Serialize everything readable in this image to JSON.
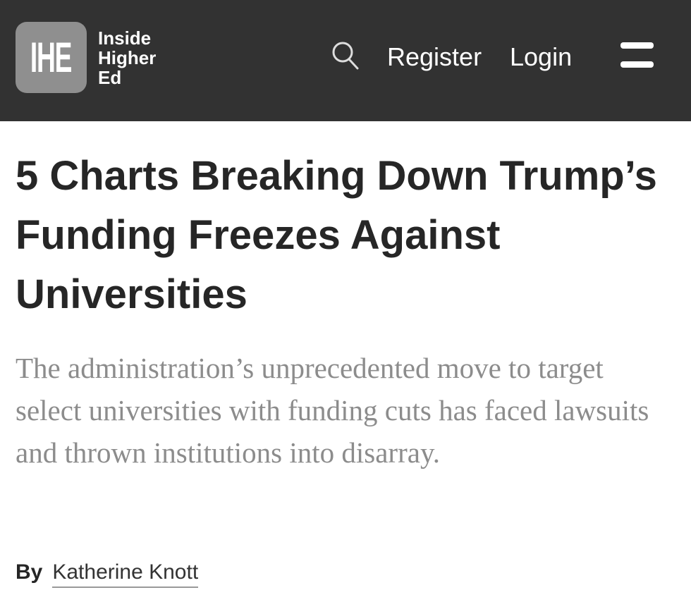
{
  "header": {
    "logo_mark": "IHE",
    "logo_text": [
      "Inside",
      "Higher",
      "Ed"
    ],
    "search_icon": "search-icon",
    "register_label": "Register",
    "login_label": "Login",
    "menu_icon": "hamburger-menu-icon",
    "background_color": "#323232"
  },
  "article": {
    "title": "5 Charts Breaking Down Trump’s Funding Freezes Against Universities",
    "subtitle": "The administration’s unprecedented move to target select universities with funding cuts has faced lawsuits and thrown institutions into disarray.",
    "by_label": "By",
    "author": "Katherine Knott"
  }
}
